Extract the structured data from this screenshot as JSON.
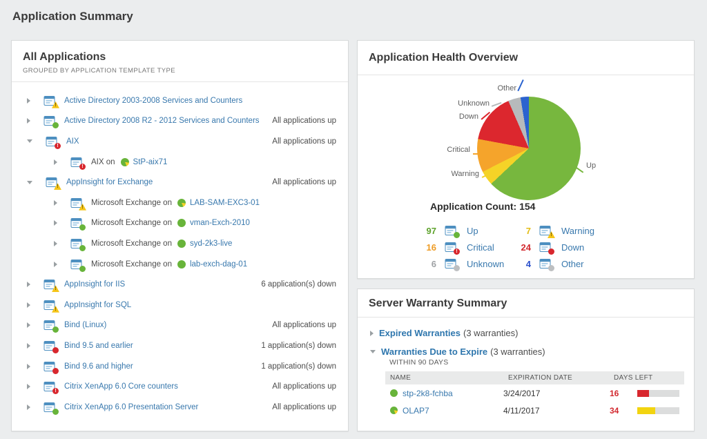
{
  "page": {
    "title": "Application Summary"
  },
  "all_applications": {
    "title": "All Applications",
    "subtitle": "GROUPED BY APPLICATION TEMPLATE TYPE",
    "rows": [
      {
        "type": "template",
        "arrow": "collapsed",
        "badge": "warning",
        "label": "Active Directory 2003-2008 Services and Counters",
        "right": ""
      },
      {
        "type": "template",
        "arrow": "collapsed",
        "badge": "up",
        "label": "Active Directory 2008 R2 - 2012 Services and Counters",
        "right": "All applications up"
      },
      {
        "type": "template",
        "arrow": "expanded",
        "badge": "critical",
        "label": "AIX",
        "right": "All applications up"
      },
      {
        "type": "instance",
        "arrow": "collapsed",
        "badge": "critical",
        "app": "AIX",
        "on": "on",
        "node": "StP-aix71",
        "node_icon": "up-partial",
        "right": ""
      },
      {
        "type": "template",
        "arrow": "expanded",
        "badge": "warning",
        "label": "AppInsight for Exchange",
        "right": "All applications up"
      },
      {
        "type": "instance",
        "arrow": "collapsed",
        "badge": "warning",
        "app": "Microsoft Exchange",
        "on": "on",
        "node": "LAB-SAM-EXC3-01",
        "node_icon": "up-partial",
        "right": ""
      },
      {
        "type": "instance",
        "arrow": "collapsed",
        "badge": "up",
        "app": "Microsoft Exchange",
        "on": "on",
        "node": "vman-Exch-2010",
        "node_icon": "up",
        "right": ""
      },
      {
        "type": "instance",
        "arrow": "collapsed",
        "badge": "up",
        "app": "Microsoft Exchange",
        "on": "on",
        "node": "syd-2k3-live",
        "node_icon": "up",
        "right": ""
      },
      {
        "type": "instance",
        "arrow": "collapsed",
        "badge": "up",
        "app": "Microsoft Exchange",
        "on": "on",
        "node": "lab-exch-dag-01",
        "node_icon": "up",
        "right": ""
      },
      {
        "type": "template",
        "arrow": "collapsed",
        "badge": "warning",
        "label": "AppInsight for IIS",
        "right": "6 application(s) down"
      },
      {
        "type": "template",
        "arrow": "collapsed",
        "badge": "warning",
        "label": "AppInsight for SQL",
        "right": ""
      },
      {
        "type": "template",
        "arrow": "collapsed",
        "badge": "up",
        "label": "Bind (Linux)",
        "right": "All applications up"
      },
      {
        "type": "template",
        "arrow": "collapsed",
        "badge": "down",
        "label": "Bind 9.5 and earlier",
        "right": "1 application(s) down"
      },
      {
        "type": "template",
        "arrow": "collapsed",
        "badge": "down",
        "label": "Bind 9.6 and higher",
        "right": "1 application(s) down"
      },
      {
        "type": "template",
        "arrow": "collapsed",
        "badge": "critical",
        "label": "Citrix XenApp 6.0 Core counters",
        "right": "All applications up"
      },
      {
        "type": "template",
        "arrow": "collapsed",
        "badge": "up",
        "label": "Citrix XenApp 6.0 Presentation Server",
        "right": "All applications up"
      }
    ]
  },
  "health": {
    "title": "Application Health Overview",
    "count_label": "Application Count:",
    "count_value": "154",
    "legend": [
      {
        "count": "97",
        "label": "Up",
        "badge": "up",
        "count_color": "#5fa32e"
      },
      {
        "count": "7",
        "label": "Warning",
        "badge": "warning",
        "count_color": "#e3bd15"
      },
      {
        "count": "16",
        "label": "Critical",
        "badge": "critical",
        "count_color": "#ee9b24"
      },
      {
        "count": "24",
        "label": "Down",
        "badge": "down",
        "count_color": "#d2292f"
      },
      {
        "count": "6",
        "label": "Unknown",
        "badge": "unknown",
        "count_color": "#9fa2a5"
      },
      {
        "count": "4",
        "label": "Other",
        "badge": "unknown",
        "count_color": "#2b50cc"
      }
    ]
  },
  "chart_data": {
    "type": "pie",
    "title": "Application Health Overview",
    "annotation": "Application Count: 154",
    "total": 154,
    "start_angle_deg": 0,
    "direction": "clockwise",
    "slices": [
      {
        "label": "Up",
        "value": 97,
        "color": "#77b73e"
      },
      {
        "label": "Warning",
        "value": 7,
        "color": "#f5d327"
      },
      {
        "label": "Critical",
        "value": 16,
        "color": "#f5a42b"
      },
      {
        "label": "Down",
        "value": 24,
        "color": "#dc272e"
      },
      {
        "label": "Unknown",
        "value": 6,
        "color": "#b7babc"
      },
      {
        "label": "Other",
        "value": 4,
        "color": "#2b63cf"
      }
    ]
  },
  "warranty": {
    "title": "Server Warranty Summary",
    "expired": {
      "label": "Expired Warranties",
      "suffix": "(3 warranties)"
    },
    "due": {
      "label": "Warranties Due to Expire",
      "suffix": "(3 warranties)",
      "within": "WITHIN 90 DAYS"
    },
    "table": {
      "headers": [
        "NAME",
        "EXPIRATION DATE",
        "DAYS LEFT"
      ],
      "rows": [
        {
          "name": "stp-2k8-fchba",
          "icon": "up",
          "expiration": "3/24/2017",
          "days_left": "16",
          "bar_color": "#d8272e",
          "bar_pct": 28
        },
        {
          "name": "OLAP7",
          "icon": "up-partial",
          "expiration": "4/11/2017",
          "days_left": "34",
          "bar_color": "#f2d410",
          "bar_pct": 42
        }
      ]
    }
  }
}
